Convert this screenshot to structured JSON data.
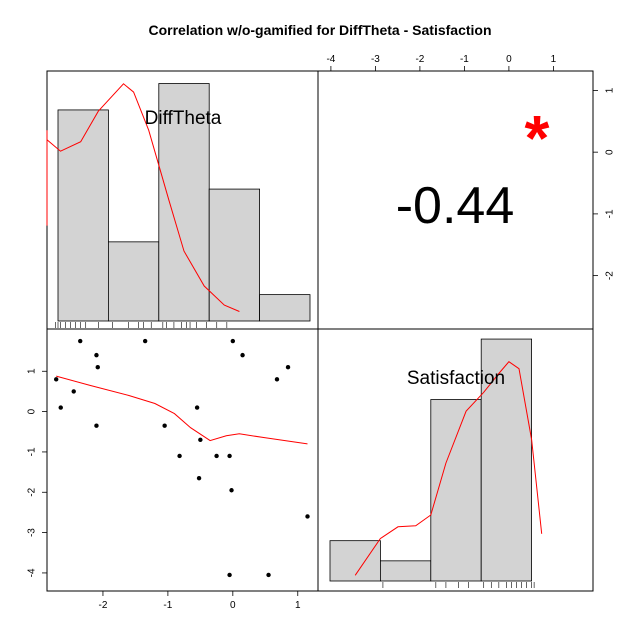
{
  "chart_data": {
    "type": "scatter",
    "title": "Correlation w/o-gamified for DiffTheta - Satisfaction",
    "variables": [
      "DiffTheta",
      "Satisfaction"
    ],
    "correlation": {
      "value_text": "-0.44",
      "significance": "*",
      "significance_color": "#ff0000"
    },
    "colors": {
      "bar_fill": "#d3d3d3",
      "density_line": "#ff0000",
      "loess_line": "#ff0000",
      "points": "#000000"
    },
    "x_axis": {
      "variable": "DiffTheta",
      "ticks": [
        -2,
        -1,
        0,
        1
      ],
      "range": [
        -2.8,
        1.25
      ]
    },
    "y_axis": {
      "variable": "Satisfaction",
      "ticks": [
        -4,
        -3,
        -2,
        -1,
        0,
        1
      ],
      "range": [
        -4.2,
        1.8
      ]
    },
    "scatter_points": [
      {
        "x": -2.72,
        "y": 0.8
      },
      {
        "x": -2.65,
        "y": 0.1
      },
      {
        "x": -2.45,
        "y": 0.5
      },
      {
        "x": -2.35,
        "y": 1.75
      },
      {
        "x": -2.1,
        "y": 1.4
      },
      {
        "x": -2.08,
        "y": 1.1
      },
      {
        "x": -2.1,
        "y": -0.35
      },
      {
        "x": -1.35,
        "y": 1.75
      },
      {
        "x": -1.05,
        "y": -0.35
      },
      {
        "x": -0.82,
        "y": -1.1
      },
      {
        "x": -0.55,
        "y": 0.1
      },
      {
        "x": -0.5,
        "y": -0.7
      },
      {
        "x": -0.52,
        "y": -1.65
      },
      {
        "x": -0.25,
        "y": -1.1
      },
      {
        "x": -0.05,
        "y": -1.1
      },
      {
        "x": -0.02,
        "y": -1.95
      },
      {
        "x": -0.05,
        "y": -4.05
      },
      {
        "x": 0.0,
        "y": 1.75
      },
      {
        "x": 0.15,
        "y": 1.4
      },
      {
        "x": 0.55,
        "y": -4.05
      },
      {
        "x": 0.68,
        "y": 0.8
      },
      {
        "x": 0.85,
        "y": 1.1
      },
      {
        "x": 1.15,
        "y": -2.6
      }
    ],
    "loess": [
      {
        "x": -2.72,
        "y": 0.88
      },
      {
        "x": -2.2,
        "y": 0.65
      },
      {
        "x": -1.6,
        "y": 0.4
      },
      {
        "x": -1.2,
        "y": 0.2
      },
      {
        "x": -0.9,
        "y": -0.05
      },
      {
        "x": -0.65,
        "y": -0.4
      },
      {
        "x": -0.35,
        "y": -0.72
      },
      {
        "x": -0.1,
        "y": -0.6
      },
      {
        "x": 0.1,
        "y": -0.55
      },
      {
        "x": 0.5,
        "y": -0.65
      },
      {
        "x": 1.15,
        "y": -0.8
      }
    ],
    "diff_theta_histogram": {
      "bins": [
        [
          -3.0,
          -2.0
        ],
        [
          -2.0,
          -1.0
        ],
        [
          -1.0,
          0.0
        ],
        [
          0.0,
          1.0
        ],
        [
          1.0,
          2.0
        ]
      ],
      "counts": [
        8,
        3,
        9,
        5,
        1
      ],
      "density": [
        {
          "x": -4.95,
          "y": 0.15
        },
        {
          "x": -3.9,
          "y": 0.27
        },
        {
          "x": -3.65,
          "y": 0.3
        },
        {
          "x": -3.25,
          "y": 0.285
        },
        {
          "x": -2.95,
          "y": 0.267
        },
        {
          "x": -2.55,
          "y": 0.282
        },
        {
          "x": -2.2,
          "y": 0.33
        },
        {
          "x": -1.7,
          "y": 0.373
        },
        {
          "x": -1.5,
          "y": 0.36
        },
        {
          "x": -1.2,
          "y": 0.3
        },
        {
          "x": -0.8,
          "y": 0.19
        },
        {
          "x": -0.5,
          "y": 0.11
        },
        {
          "x": -0.1,
          "y": 0.055
        },
        {
          "x": 0.3,
          "y": 0.025
        },
        {
          "x": 0.6,
          "y": 0.015
        }
      ],
      "rug": [
        -3.05,
        -3.0,
        -2.95,
        -2.85,
        -2.75,
        -2.65,
        -2.55,
        -2.45,
        -2.2,
        -1.92,
        -1.6,
        -1.4,
        -1.3,
        -1.15,
        -0.92,
        -0.85,
        -0.7,
        -0.55,
        -0.45,
        -0.38,
        -0.25,
        -0.05,
        0.15,
        0.35
      ]
    },
    "satisfaction_histogram": {
      "bins": [
        [
          -4.5,
          -3.5
        ],
        [
          -3.5,
          -2.5
        ],
        [
          -2.5,
          -1.5
        ],
        [
          -1.5,
          -0.5
        ],
        [
          -0.5,
          0.5
        ]
      ],
      "counts": [
        2,
        1,
        9,
        12,
        0
      ],
      "density": [
        {
          "x": -4.0,
          "y": 0.012
        },
        {
          "x": -3.5,
          "y": 0.09
        },
        {
          "x": -3.15,
          "y": 0.115
        },
        {
          "x": -2.8,
          "y": 0.117
        },
        {
          "x": -2.5,
          "y": 0.14
        },
        {
          "x": -2.2,
          "y": 0.25
        },
        {
          "x": -1.8,
          "y": 0.36
        },
        {
          "x": -1.45,
          "y": 0.4
        },
        {
          "x": -1.15,
          "y": 0.44
        },
        {
          "x": -0.95,
          "y": 0.465
        },
        {
          "x": -0.75,
          "y": 0.45
        },
        {
          "x": -0.5,
          "y": 0.3
        },
        {
          "x": -0.3,
          "y": 0.1
        }
      ],
      "rug": [
        -3.45,
        -2.4,
        -2.2,
        -1.95,
        -1.75,
        -1.45,
        -1.3,
        -1.15,
        -1.0,
        -0.9,
        -0.8,
        -0.7,
        -0.6,
        -0.5,
        -0.45
      ]
    }
  }
}
